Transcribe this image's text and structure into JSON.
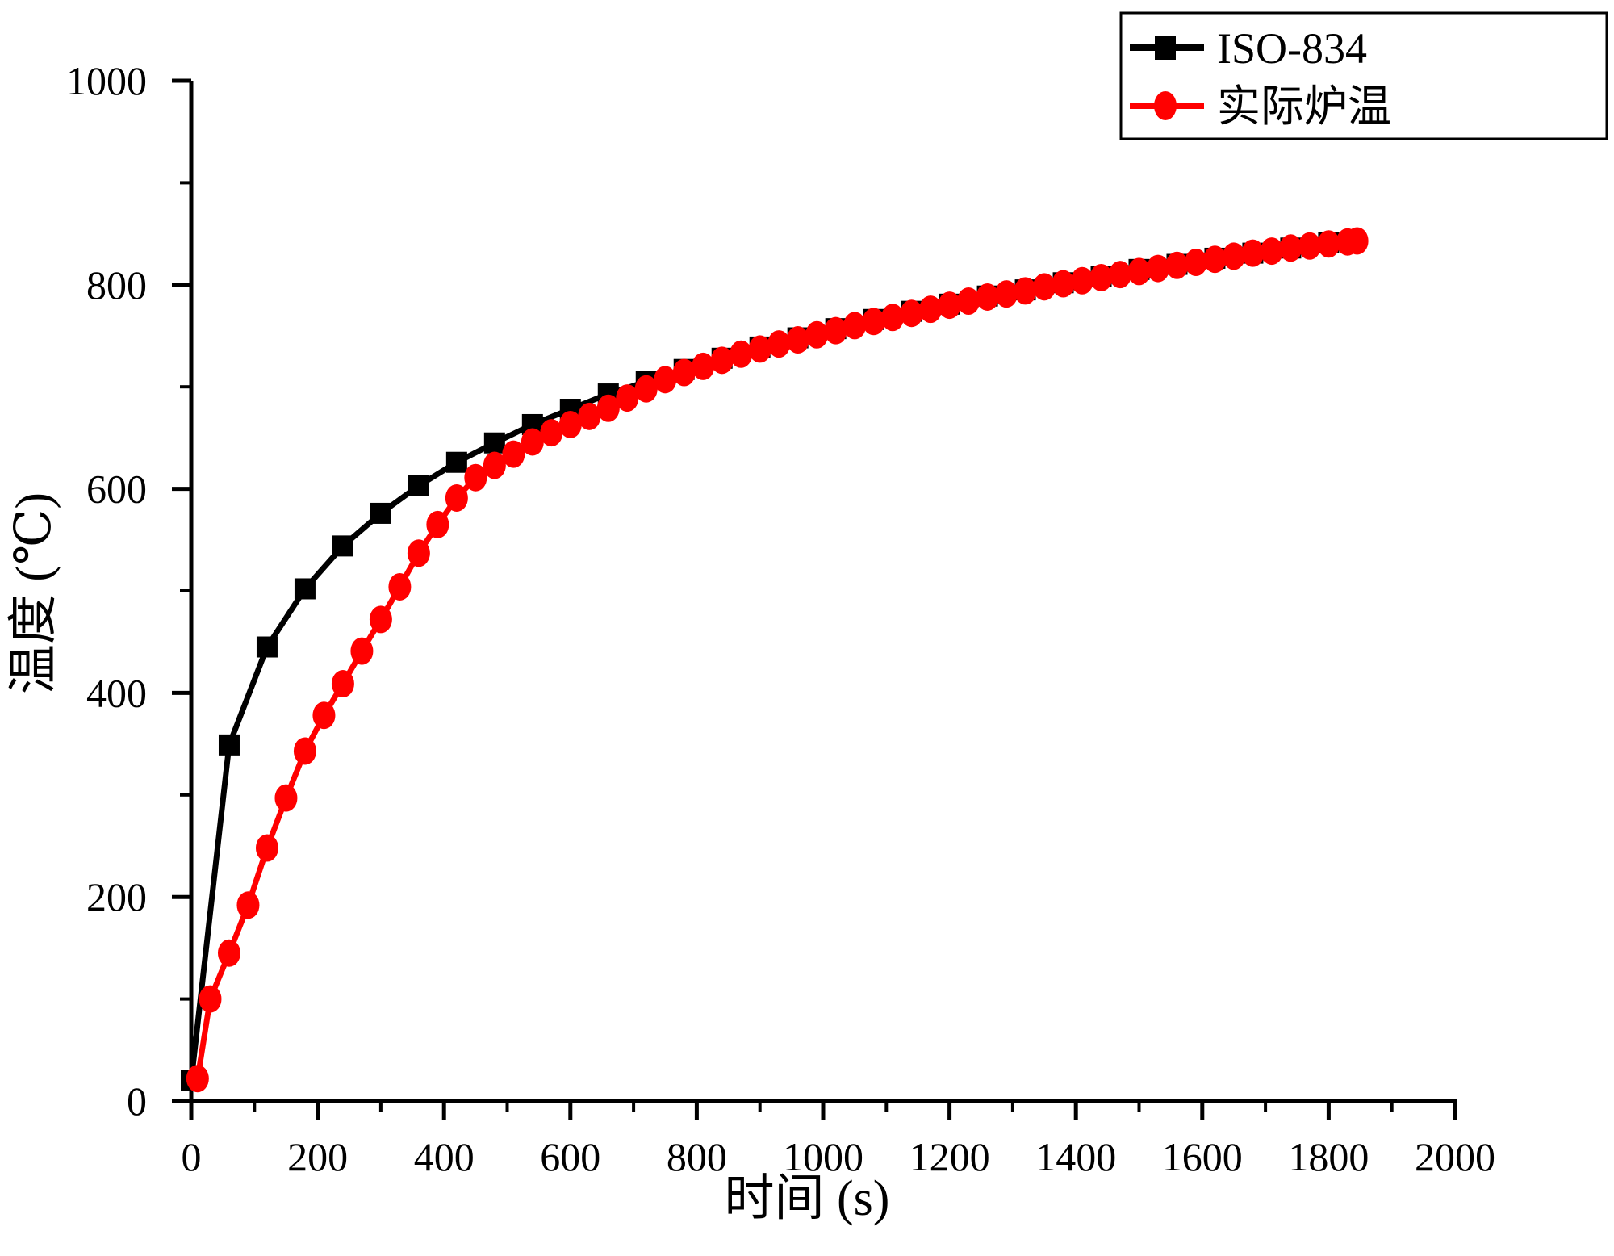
{
  "chart_data": {
    "type": "line",
    "title": "",
    "xlabel": "时间 (s)",
    "ylabel": "温度 (℃)",
    "xlim": [
      0,
      2000
    ],
    "ylim": [
      0,
      1000
    ],
    "x_major_ticks": [
      0,
      200,
      400,
      600,
      800,
      1000,
      1200,
      1400,
      1600,
      1800,
      2000
    ],
    "x_minor_ticks": [
      100,
      300,
      500,
      700,
      900,
      1100,
      1300,
      1500,
      1700,
      1900
    ],
    "y_major_ticks": [
      0,
      200,
      400,
      600,
      800,
      1000
    ],
    "y_minor_ticks": [
      100,
      300,
      500,
      700,
      900
    ],
    "x_tick_labels": [
      "0",
      "200",
      "400",
      "600",
      "800",
      "1000",
      "1200",
      "1400",
      "1600",
      "1800",
      "2000"
    ],
    "y_tick_labels": [
      "0",
      "200",
      "400",
      "600",
      "800",
      "1000"
    ],
    "grid": false,
    "legend_position": "top-right",
    "background_color": "#ffffff",
    "axis_color": "#000000",
    "series": [
      {
        "name": "ISO-834",
        "color": "#000000",
        "marker": "square",
        "x": [
          0,
          60,
          120,
          180,
          240,
          300,
          360,
          420,
          480,
          540,
          600,
          660,
          720,
          780,
          840,
          900,
          960,
          1020,
          1080,
          1140,
          1200,
          1260,
          1320,
          1380,
          1440,
          1500,
          1560,
          1620,
          1680,
          1740,
          1800
        ],
        "y": [
          20,
          349,
          445,
          502,
          544,
          576,
          603,
          626,
          645,
          663,
          678,
          693,
          705,
          717,
          728,
          739,
          748,
          757,
          766,
          774,
          781,
          789,
          795,
          802,
          808,
          815,
          820,
          826,
          831,
          836,
          841
        ]
      },
      {
        "name": "实际炉温",
        "color": "#ff0000",
        "marker": "circle",
        "x": [
          10,
          30,
          60,
          90,
          120,
          150,
          180,
          210,
          240,
          270,
          300,
          330,
          360,
          390,
          420,
          450,
          480,
          510,
          540,
          570,
          600,
          630,
          660,
          690,
          720,
          750,
          780,
          810,
          840,
          870,
          900,
          930,
          960,
          990,
          1020,
          1050,
          1080,
          1110,
          1140,
          1170,
          1200,
          1230,
          1260,
          1290,
          1320,
          1350,
          1380,
          1410,
          1440,
          1470,
          1500,
          1530,
          1560,
          1590,
          1620,
          1650,
          1680,
          1710,
          1740,
          1770,
          1800,
          1830,
          1845
        ],
        "y": [
          22,
          100,
          145,
          192,
          248,
          297,
          343,
          378,
          409,
          441,
          472,
          504,
          537,
          565,
          591,
          611,
          623,
          634,
          646,
          655,
          663,
          671,
          679,
          689,
          698,
          707,
          714,
          720,
          726,
          732,
          737,
          742,
          746,
          751,
          755,
          760,
          764,
          768,
          772,
          776,
          780,
          784,
          788,
          791,
          794,
          798,
          801,
          804,
          807,
          810,
          813,
          816,
          819,
          822,
          825,
          828,
          831,
          833,
          836,
          838,
          840,
          842,
          843
        ]
      }
    ],
    "legend": {
      "entries": [
        {
          "label": "ISO-834",
          "color": "#000000",
          "marker": "square"
        },
        {
          "label": "实际炉温",
          "color": "#ff0000",
          "marker": "circle"
        }
      ]
    }
  }
}
